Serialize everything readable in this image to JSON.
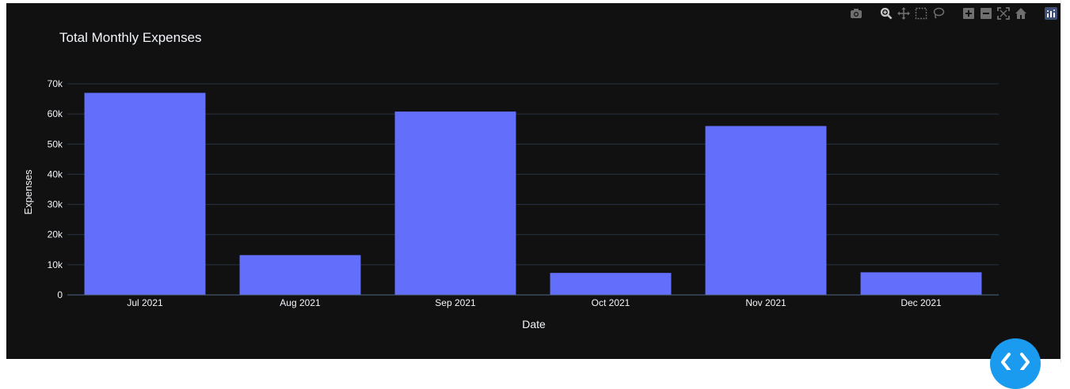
{
  "modebar": {
    "icons": [
      "camera-icon",
      "zoom-icon",
      "pan-icon",
      "box-select-icon",
      "lasso-select-icon",
      "zoom-in-icon",
      "zoom-out-icon",
      "autoscale-icon",
      "reset-axes-icon",
      "plotly-logo-icon"
    ]
  },
  "colors": {
    "background": "#111111",
    "bar": "#636efa",
    "grid": "#283442",
    "text": "#f2f5fa",
    "fab": "#1a9bf0"
  },
  "chart_data": {
    "type": "bar",
    "title": "Total Monthly Expenses",
    "xlabel": "Date",
    "ylabel": "Expenses",
    "categories": [
      "Jul 2021",
      "Aug 2021",
      "Sep 2021",
      "Oct 2021",
      "Nov 2021",
      "Dec 2021"
    ],
    "values": [
      67000,
      13200,
      60800,
      7300,
      56000,
      7500
    ],
    "ylim": [
      0,
      70000
    ],
    "yticks": [
      0,
      10000,
      20000,
      30000,
      40000,
      50000,
      60000,
      70000
    ],
    "ytick_labels": [
      "0",
      "10k",
      "20k",
      "30k",
      "40k",
      "50k",
      "60k",
      "70k"
    ],
    "grid": true,
    "legend": false
  }
}
